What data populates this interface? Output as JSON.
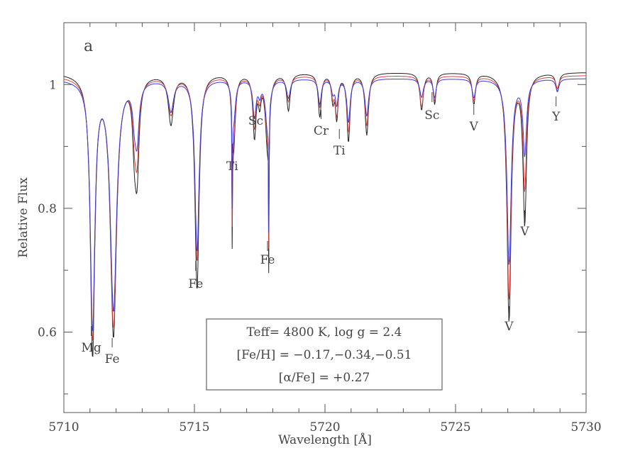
{
  "chart_data": {
    "type": "line",
    "panel_label": "a",
    "xlabel": "Wavelength [Å]",
    "ylabel": "Relative Flux",
    "xlim": [
      5710,
      5730
    ],
    "ylim": [
      0.47,
      1.1
    ],
    "xticks": [
      5710,
      5715,
      5720,
      5725,
      5730
    ],
    "yticks": [
      0.6,
      0.8,
      1.0
    ],
    "ytick_labels": [
      "0.6",
      "0.8",
      "1"
    ],
    "series": [
      {
        "color": "#222222",
        "continuum": 1.02,
        "depths": [
          0.45,
          0.42,
          0.08,
          0.15,
          0.08,
          0.35,
          0.12,
          0.1,
          0.04,
          0.12,
          0.33,
          0.3,
          0.06,
          0.07,
          0.04,
          0.07,
          0.11,
          0.1,
          0.06,
          0.05,
          0.05,
          0.4,
          0.24,
          0.03
        ]
      },
      {
        "color": "#e0413a",
        "continuum": 1.015,
        "depths": [
          0.42,
          0.4,
          0.06,
          0.12,
          0.06,
          0.3,
          0.1,
          0.08,
          0.03,
          0.1,
          0.29,
          0.26,
          0.04,
          0.05,
          0.03,
          0.06,
          0.09,
          0.08,
          0.05,
          0.04,
          0.04,
          0.36,
          0.18,
          0.02
        ]
      },
      {
        "color": "#3b3be0",
        "continuum": 1.01,
        "depths": [
          0.4,
          0.37,
          0.04,
          0.09,
          0.05,
          0.28,
          0.07,
          0.06,
          0.02,
          0.08,
          0.27,
          0.24,
          0.03,
          0.04,
          0.02,
          0.04,
          0.07,
          0.06,
          0.03,
          0.03,
          0.03,
          0.3,
          0.12,
          0.02
        ]
      }
    ],
    "lines_wavelengths": [
      5711.1,
      5711.9,
      5712.7,
      5712.8,
      5714.1,
      5715.1,
      5716.5,
      5717.3,
      5717.5,
      5717.8,
      5717.85,
      5716.45,
      5718.6,
      5719.8,
      5720.3,
      5720.45,
      5720.9,
      5721.6,
      5723.7,
      5724.2,
      5725.7,
      5727.05,
      5727.65,
      5728.9
    ],
    "line_widths": [
      0.13,
      0.18,
      0.1,
      0.12,
      0.15,
      0.12,
      0.1,
      0.09,
      0.08,
      0.12,
      0.01,
      0.01,
      0.1,
      0.09,
      0.08,
      0.08,
      0.09,
      0.1,
      0.1,
      0.08,
      0.09,
      0.12,
      0.1,
      0.09
    ],
    "annotations": [
      {
        "label": "Mg",
        "x": 5711.05
      },
      {
        "label": "Fe",
        "x": 5711.85
      },
      {
        "label": "Fe",
        "x": 5715.05
      },
      {
        "label": "Ti",
        "x": 5716.45
      },
      {
        "label": "Sc",
        "x": 5717.35
      },
      {
        "label": "Fe",
        "x": 5717.8
      },
      {
        "label": "Cr",
        "x": 5719.85
      },
      {
        "label": "Ti",
        "x": 5720.55
      },
      {
        "label": "Sc",
        "x": 5724.1
      },
      {
        "label": "V",
        "x": 5725.7
      },
      {
        "label": "V",
        "x": 5727.05
      },
      {
        "label": "V",
        "x": 5727.65
      },
      {
        "label": "Y",
        "x": 5728.85
      }
    ],
    "legend": {
      "lines": [
        "Teff= 4800 K, log g = 2.4",
        "[Fe/H] = −0.17,−0.34,−0.51",
        "[α/Fe] = +0.27"
      ],
      "placement": "bottom-center"
    }
  }
}
